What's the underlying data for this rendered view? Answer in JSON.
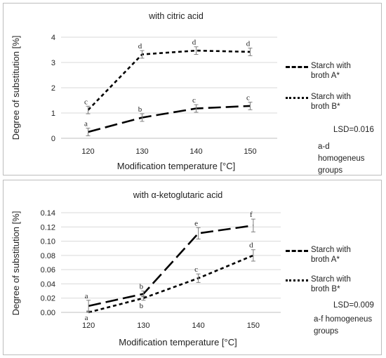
{
  "chart_data": [
    {
      "type": "line",
      "title": "with citric acid",
      "xlabel": "Modification temperature [°C]",
      "ylabel": "Degree of substitution [%]",
      "categories": [
        "120",
        "130",
        "140",
        "150"
      ],
      "ylim": [
        0,
        4
      ],
      "yticks": [
        "0",
        "1",
        "2",
        "3",
        "4"
      ],
      "grid": "horizontal",
      "legend": "right",
      "series": [
        {
          "name": "Starch with broth A*",
          "style": "long-dash",
          "values": [
            0.25,
            0.82,
            1.18,
            1.28
          ],
          "errors": [
            0.15,
            0.15,
            0.15,
            0.15
          ],
          "letters": [
            "a",
            "b",
            "c",
            "c"
          ],
          "letter_position": "above"
        },
        {
          "name": "Starch with broth B*",
          "style": "short-dash",
          "values": [
            1.12,
            3.32,
            3.47,
            3.42
          ],
          "errors": [
            0.15,
            0.15,
            0.15,
            0.15
          ],
          "letters": [
            "c",
            "d",
            "d",
            "d"
          ],
          "letter_position": "above"
        }
      ],
      "annotations": [
        "LSD=0.016",
        "a-d homogeneus groups"
      ]
    },
    {
      "type": "line",
      "title": "with α-ketoglutaric acid",
      "xlabel": "Modification temperature [°C]",
      "ylabel": "Degree of substitution [%]",
      "categories": [
        "120",
        "130",
        "140",
        "150"
      ],
      "ylim": [
        0,
        0.14
      ],
      "yticks": [
        "0.00",
        "0.02",
        "0.04",
        "0.06",
        "0.08",
        "0.10",
        "0.12",
        "0.14"
      ],
      "grid": "horizontal",
      "legend": "right",
      "series": [
        {
          "name": "Starch with broth A*",
          "style": "long-dash",
          "values": [
            0.009,
            0.026,
            0.111,
            0.122
          ],
          "errors": [
            0.008,
            0.004,
            0.008,
            0.009
          ],
          "letters": [
            "a",
            "b",
            "e",
            "f"
          ],
          "letter_position": "above"
        },
        {
          "name": "Starch with broth B*",
          "style": "short-dash",
          "values": [
            0.0,
            0.02,
            0.048,
            0.08
          ],
          "errors": [
            0.002,
            0.003,
            0.006,
            0.008
          ],
          "letters": [
            "a",
            "b",
            "c",
            "d"
          ],
          "letter_position": [
            "below",
            "below",
            "above",
            "above"
          ]
        }
      ],
      "annotations": [
        "LSD=0.009",
        "a-f homogeneus groups"
      ]
    }
  ],
  "colors": {
    "line": "#000000",
    "grid": "#d9d9d9",
    "error_bar": "#7f7f7f",
    "text": "#222222"
  }
}
